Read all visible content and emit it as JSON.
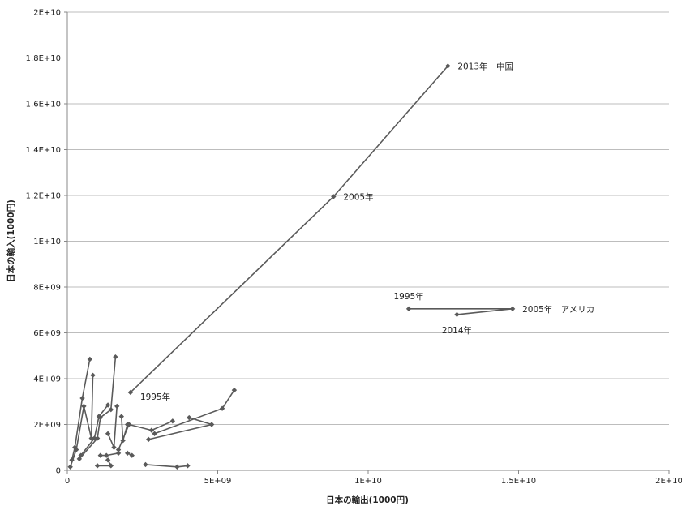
{
  "chart_data": {
    "type": "scatter",
    "xlabel": "日本の輸出(1000円)",
    "ylabel": "日本の輸入(1000円)",
    "xlim": [
      0,
      20000000000
    ],
    "ylim": [
      0,
      20000000000
    ],
    "x_ticks": [
      0,
      5000000000,
      10000000000,
      15000000000,
      20000000000
    ],
    "x_tick_labels": [
      "0",
      "5E+09",
      "1E+10",
      "1.5E+10",
      "2E+10"
    ],
    "y_ticks": [
      0,
      2000000000,
      4000000000,
      6000000000,
      8000000000,
      10000000000,
      12000000000,
      14000000000,
      16000000000,
      18000000000,
      20000000000
    ],
    "y_tick_labels": [
      "0",
      "2E+09",
      "4E+09",
      "6E+09",
      "8E+09",
      "1E+10",
      "1.2E+10",
      "1.4E+10",
      "1.6E+10",
      "1.8E+10",
      "2E+10"
    ],
    "grid": "horizontal",
    "legend": "none",
    "series": [
      {
        "values": [
          [
            2100000000,
            3400000000
          ],
          [
            8850000000,
            11950000000
          ],
          [
            12650000000,
            17650000000
          ]
        ]
      },
      {
        "values": [
          [
            11350000000,
            7050000000
          ],
          [
            14800000000,
            7050000000
          ],
          [
            12950000000,
            6800000000
          ]
        ]
      },
      {
        "values": [
          [
            150000000,
            450000000
          ],
          [
            250000000,
            1000000000
          ],
          [
            500000000,
            3150000000
          ],
          [
            750000000,
            4850000000
          ]
        ]
      },
      {
        "values": [
          [
            100000000,
            150000000
          ],
          [
            300000000,
            900000000
          ],
          [
            550000000,
            2800000000
          ],
          [
            800000000,
            1400000000
          ],
          [
            850000000,
            4150000000
          ]
        ]
      },
      {
        "values": [
          [
            400000000,
            500000000
          ],
          [
            1000000000,
            1400000000
          ],
          [
            1100000000,
            2300000000
          ],
          [
            1450000000,
            2650000000
          ],
          [
            1600000000,
            4950000000
          ]
        ]
      },
      {
        "values": [
          [
            450000000,
            650000000
          ],
          [
            900000000,
            1400000000
          ],
          [
            1050000000,
            2350000000
          ],
          [
            1350000000,
            2850000000
          ]
        ]
      },
      {
        "values": [
          [
            1350000000,
            1600000000
          ],
          [
            1550000000,
            1000000000
          ],
          [
            1650000000,
            2800000000
          ]
        ]
      },
      {
        "values": [
          [
            1800000000,
            2350000000
          ],
          [
            1850000000,
            1300000000
          ],
          [
            2000000000,
            2000000000
          ]
        ]
      },
      {
        "values": [
          [
            1700000000,
            900000000
          ],
          [
            2050000000,
            2000000000
          ],
          [
            2800000000,
            1750000000
          ],
          [
            3500000000,
            2150000000
          ]
        ]
      },
      {
        "values": [
          [
            2000000000,
            750000000
          ],
          [
            2150000000,
            650000000
          ]
        ]
      },
      {
        "values": [
          [
            2700000000,
            1350000000
          ],
          [
            4800000000,
            2000000000
          ],
          [
            4050000000,
            2300000000
          ]
        ]
      },
      {
        "values": [
          [
            2900000000,
            1600000000
          ],
          [
            5150000000,
            2700000000
          ],
          [
            5550000000,
            3500000000
          ]
        ]
      },
      {
        "values": [
          [
            1100000000,
            650000000
          ],
          [
            1300000000,
            650000000
          ],
          [
            1700000000,
            750000000
          ]
        ]
      },
      {
        "values": [
          [
            1000000000,
            200000000
          ],
          [
            1450000000,
            200000000
          ],
          [
            1350000000,
            450000000
          ]
        ]
      },
      {
        "values": [
          [
            2600000000,
            250000000
          ],
          [
            3650000000,
            150000000
          ],
          [
            4000000000,
            200000000
          ]
        ]
      }
    ],
    "annotations": [
      {
        "text": "1995年",
        "x": 2100000000,
        "y": 3400000000,
        "anchor": "right-below"
      },
      {
        "text": "2005年",
        "x": 8850000000,
        "y": 11950000000,
        "anchor": "right"
      },
      {
        "text": "2013年　中国",
        "x": 12650000000,
        "y": 17650000000,
        "anchor": "right"
      },
      {
        "text": "1995年",
        "x": 11350000000,
        "y": 7050000000,
        "anchor": "above"
      },
      {
        "text": "2005年　アメリカ",
        "x": 14800000000,
        "y": 7050000000,
        "anchor": "right"
      },
      {
        "text": "2014年",
        "x": 12950000000,
        "y": 6800000000,
        "anchor": "below"
      }
    ],
    "colors": {
      "series": "#5a5a5a",
      "grid": "#bdbdbd",
      "axis": "#888888"
    }
  }
}
